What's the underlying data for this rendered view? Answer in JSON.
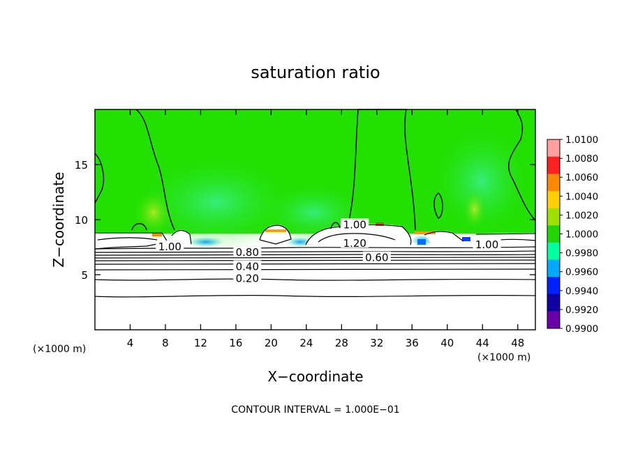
{
  "chart_data": {
    "type": "heatmap",
    "title": "saturation ratio",
    "xlabel": "X−coordinate",
    "ylabel": "Z−coordinate",
    "x_unit_left": "(×1000 m)",
    "x_unit_right": "(×1000 m)",
    "footer": "CONTOUR INTERVAL = 1.000E−01",
    "xlim": [
      0,
      50
    ],
    "ylim": [
      0,
      20
    ],
    "xticks": [
      4,
      8,
      12,
      16,
      20,
      24,
      28,
      32,
      36,
      40,
      44,
      48
    ],
    "yticks": [
      5,
      10,
      15
    ],
    "colorbar": {
      "levels": [
        "1.0100",
        "1.0080",
        "1.0060",
        "1.0040",
        "1.0020",
        "1.0000",
        "0.9980",
        "0.9960",
        "0.9940",
        "0.9920",
        "0.9900"
      ],
      "colors": [
        "#ff9f9f",
        "#ff2020",
        "#ff8a00",
        "#ffd000",
        "#a0e000",
        "#22d400",
        "#00ffa0",
        "#00a8ff",
        "#0020ff",
        "#1000a0",
        "#6a00a8"
      ]
    },
    "contour_labels": [
      {
        "text": "1.00",
        "x": 8.5,
        "z": 7.6
      },
      {
        "text": "0.80",
        "x": 17.3,
        "z": 7.1
      },
      {
        "text": "0.60",
        "x": 32,
        "z": 6.6
      },
      {
        "text": "0.40",
        "x": 17.3,
        "z": 5.8
      },
      {
        "text": "0.20",
        "x": 17.3,
        "z": 4.7
      },
      {
        "text": "1.20",
        "x": 29.5,
        "z": 7.9
      },
      {
        "text": "1.00",
        "x": 29.5,
        "z": 9.6
      },
      {
        "text": "1.00",
        "x": 44.5,
        "z": 7.8
      }
    ]
  }
}
